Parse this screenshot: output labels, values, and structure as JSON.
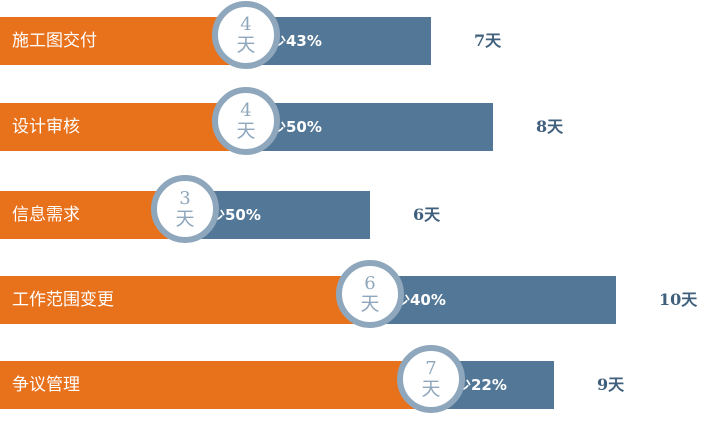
{
  "colors": {
    "orange": "#E8711C",
    "blue": "#537796",
    "ring": "#8FA7BC",
    "text": "#3F5F7C",
    "white": "#FFFFFF"
  },
  "chart_data": {
    "type": "bar",
    "orientation": "horizontal",
    "title": "",
    "xlabel": "",
    "ylabel": "",
    "xlim": [
      0,
      10.5
    ],
    "categories": [
      "施工图交付",
      "设计审核",
      "信息需求",
      "工作范围变更",
      "争议管理"
    ],
    "series": [
      {
        "values": [
          4,
          4,
          3,
          6,
          7
        ]
      },
      {
        "values": [
          3,
          4,
          3,
          4,
          2
        ]
      }
    ],
    "circle_labels": [
      "4",
      "4",
      "3",
      "6",
      "7"
    ],
    "circle_unit": "天",
    "reduction_labels": [
      "减少43%",
      "减少50%",
      "减少50%",
      "减少40%",
      "减少22%"
    ],
    "total_labels": [
      "7天",
      "8天",
      "6天",
      "10天",
      "9天"
    ],
    "totals": [
      7,
      8,
      6,
      10,
      9
    ]
  }
}
